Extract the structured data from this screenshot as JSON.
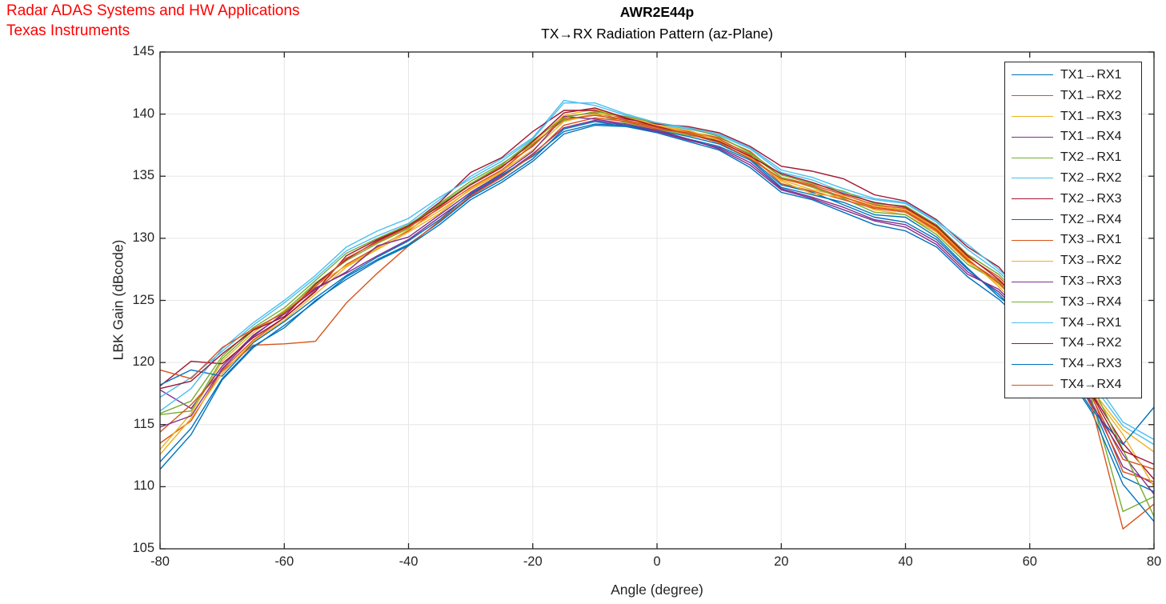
{
  "annotation": {
    "line1": "Radar ADAS Systems and HW Applications",
    "line2": "Texas Instruments",
    "color": "#ff0000"
  },
  "axis": {
    "axis_color": "#262626",
    "grid_color": "#e6e6e6",
    "background": "#ffffff"
  },
  "chart_data": {
    "type": "line",
    "title": "AWR2E44p",
    "subtitle": "TX→RX Radiation Pattern (az-Plane)",
    "xlabel": "Angle (degree)",
    "ylabel": "LBK Gain (dBcode)",
    "xlim": [
      -80,
      80
    ],
    "ylim": [
      105,
      145
    ],
    "x_ticks": [
      -80,
      -60,
      -40,
      -20,
      0,
      20,
      40,
      60,
      80
    ],
    "y_ticks": [
      105,
      110,
      115,
      120,
      125,
      130,
      135,
      140,
      145
    ],
    "grid": true,
    "legend_position": "northeast",
    "palette": [
      "#0072BD",
      "#D95319",
      "#EDB120",
      "#7E2F8E",
      "#77AC30",
      "#4DBEEE",
      "#A2142F"
    ],
    "x": [
      -80,
      -75,
      -70,
      -65,
      -60,
      -55,
      -50,
      -45,
      -40,
      -35,
      -30,
      -25,
      -20,
      -15,
      -10,
      -5,
      0,
      5,
      10,
      15,
      20,
      25,
      30,
      35,
      40,
      45,
      50,
      55,
      60,
      65,
      70,
      75,
      80
    ],
    "series": [
      {
        "name": "TX1→RX1",
        "color": "#0072BD",
        "values": [
          111.4,
          114.2,
          118.6,
          121.2,
          123.0,
          124.9,
          126.9,
          128.3,
          129.5,
          131.3,
          133.3,
          134.7,
          136.4,
          138.8,
          139.4,
          139.0,
          138.6,
          138.0,
          137.4,
          136.3,
          134.1,
          133.5,
          132.9,
          131.9,
          131.7,
          130.1,
          127.6,
          125.3,
          123.4,
          120.4,
          116.6,
          110.8,
          109.6
        ]
      },
      {
        "name": "TX1→RX2",
        "color": "#D95319",
        "values": [
          113.5,
          115.3,
          119.4,
          121.8,
          123.6,
          125.8,
          127.9,
          129.3,
          130.6,
          132.5,
          134.4,
          135.8,
          137.4,
          139.8,
          140.1,
          139.5,
          139.0,
          138.6,
          138.1,
          137.0,
          134.9,
          134.3,
          133.5,
          132.7,
          132.4,
          130.9,
          128.5,
          126.9,
          124.5,
          121.3,
          117.2,
          112.2,
          111.4
        ]
      },
      {
        "name": "TX1→RX3",
        "color": "#EDB120",
        "values": [
          113.0,
          115.9,
          120.1,
          122.4,
          124.2,
          126.2,
          127.8,
          129.2,
          130.7,
          132.2,
          133.9,
          135.3,
          137.7,
          139.9,
          140.4,
          139.7,
          139.1,
          138.5,
          137.8,
          136.6,
          134.7,
          133.9,
          133.4,
          132.3,
          131.9,
          130.5,
          128.1,
          126.3,
          124.0,
          121.0,
          117.8,
          114.6,
          112.8
        ]
      },
      {
        "name": "TX1→RX4",
        "color": "#7E2F8E",
        "values": [
          117.8,
          116.3,
          119.7,
          122.2,
          123.9,
          126.0,
          127.2,
          128.6,
          129.9,
          131.7,
          133.5,
          135.0,
          136.8,
          138.9,
          139.5,
          139.1,
          138.6,
          137.9,
          137.3,
          136.1,
          134.0,
          133.3,
          132.5,
          131.5,
          131.1,
          129.7,
          127.3,
          125.7,
          123.2,
          120.2,
          116.8,
          111.6,
          110.2
        ]
      },
      {
        "name": "TX2→RX1",
        "color": "#77AC30",
        "values": [
          115.8,
          116.1,
          120.3,
          122.6,
          124.1,
          126.4,
          128.2,
          129.6,
          130.8,
          132.8,
          134.6,
          136.0,
          137.6,
          139.5,
          140.0,
          139.3,
          138.8,
          138.3,
          137.9,
          136.8,
          134.9,
          134.1,
          133.2,
          132.1,
          131.9,
          130.3,
          127.9,
          126.5,
          123.8,
          120.8,
          117.0,
          108.0,
          109.2
        ]
      },
      {
        "name": "TX2→RX2",
        "color": "#4DBEEE",
        "values": [
          117.2,
          118.8,
          120.9,
          123.0,
          124.8,
          126.8,
          129.0,
          130.2,
          131.2,
          133.1,
          135.0,
          136.4,
          138.1,
          141.1,
          140.7,
          139.9,
          139.2,
          138.8,
          138.3,
          137.2,
          135.3,
          134.7,
          133.7,
          133.1,
          132.8,
          131.3,
          129.1,
          127.3,
          125.0,
          122.0,
          118.3,
          114.9,
          113.4
        ]
      },
      {
        "name": "TX2→RX3",
        "color": "#A2142F",
        "values": [
          118.1,
          120.1,
          119.9,
          122.0,
          123.6,
          125.7,
          128.6,
          129.9,
          131.0,
          132.9,
          135.3,
          136.5,
          138.6,
          140.3,
          140.3,
          139.6,
          139.2,
          139.0,
          138.5,
          137.4,
          135.8,
          135.4,
          134.8,
          133.5,
          133.0,
          131.5,
          129.3,
          127.7,
          124.8,
          121.8,
          117.5,
          113.5,
          110.6
        ]
      },
      {
        "name": "TX2→RX4",
        "color": "#0072BD",
        "values": [
          118.2,
          119.4,
          118.9,
          121.6,
          123.3,
          125.2,
          127.0,
          128.5,
          129.8,
          131.5,
          133.6,
          135.1,
          136.6,
          138.6,
          139.2,
          139.1,
          138.7,
          138.2,
          137.6,
          136.4,
          134.3,
          133.7,
          132.7,
          131.7,
          131.3,
          129.9,
          127.5,
          125.5,
          123.0,
          120.0,
          116.2,
          113.4,
          116.4
        ]
      },
      {
        "name": "TX3→RX1",
        "color": "#D95319",
        "values": [
          114.4,
          116.6,
          119.3,
          121.4,
          121.5,
          121.7,
          124.8,
          127.2,
          129.4,
          131.4,
          133.4,
          134.9,
          136.7,
          139.1,
          139.7,
          139.4,
          138.8,
          138.5,
          138.0,
          136.7,
          134.4,
          133.8,
          133.1,
          132.4,
          132.1,
          130.6,
          128.2,
          126.6,
          124.2,
          121.1,
          117.3,
          111.2,
          110.4
        ]
      },
      {
        "name": "TX3→RX2",
        "color": "#EDB120",
        "values": [
          112.6,
          115.5,
          119.1,
          121.7,
          123.4,
          125.5,
          127.7,
          129.1,
          130.5,
          132.0,
          134.0,
          135.4,
          137.1,
          139.4,
          140.0,
          139.8,
          139.1,
          138.7,
          137.9,
          136.5,
          134.6,
          133.6,
          133.3,
          132.6,
          132.3,
          130.8,
          128.4,
          126.1,
          123.6,
          120.6,
          117.6,
          114.2,
          110.0
        ]
      },
      {
        "name": "TX3→RX3",
        "color": "#7E2F8E",
        "values": [
          114.8,
          115.7,
          119.5,
          122.1,
          124.0,
          125.9,
          127.3,
          129.4,
          130.1,
          131.9,
          133.7,
          135.2,
          137.0,
          139.8,
          139.6,
          139.2,
          138.7,
          138.0,
          137.2,
          135.9,
          133.9,
          133.2,
          132.3,
          131.4,
          130.9,
          129.5,
          127.1,
          125.9,
          123.4,
          120.4,
          116.6,
          112.6,
          109.4
        ]
      },
      {
        "name": "TX3→RX4",
        "color": "#77AC30",
        "values": [
          115.9,
          116.9,
          120.5,
          122.8,
          124.4,
          126.6,
          128.8,
          130.0,
          131.1,
          132.7,
          134.4,
          135.9,
          137.9,
          139.7,
          140.2,
          139.8,
          139.3,
          138.9,
          138.2,
          136.9,
          135.1,
          134.4,
          133.8,
          132.8,
          132.6,
          131.1,
          128.7,
          127.1,
          124.6,
          121.6,
          118.2,
          113.0,
          107.6
        ]
      },
      {
        "name": "TX4→RX1",
        "color": "#4DBEEE",
        "values": [
          116.1,
          117.9,
          121.1,
          123.2,
          125.0,
          127.0,
          129.3,
          130.6,
          131.6,
          133.3,
          134.8,
          136.2,
          138.0,
          140.9,
          140.9,
          140.0,
          139.3,
          138.9,
          138.4,
          137.3,
          135.5,
          134.9,
          134.0,
          133.2,
          132.9,
          131.4,
          129.5,
          127.5,
          125.2,
          122.2,
          118.8,
          115.2,
          113.8
        ]
      },
      {
        "name": "TX4→RX2",
        "color": "#A2142F",
        "values": [
          117.9,
          118.5,
          120.7,
          122.6,
          123.7,
          126.3,
          128.3,
          129.8,
          131.0,
          132.6,
          134.3,
          135.7,
          137.8,
          140.1,
          140.5,
          139.7,
          139.0,
          138.4,
          137.8,
          136.6,
          135.2,
          134.5,
          133.6,
          132.9,
          132.5,
          131.0,
          128.6,
          126.7,
          124.3,
          121.4,
          117.4,
          112.9,
          111.8
        ]
      },
      {
        "name": "TX4→RX3",
        "color": "#0072BD",
        "values": [
          112.0,
          114.7,
          118.7,
          121.3,
          122.8,
          125.0,
          126.7,
          128.2,
          129.4,
          131.1,
          133.1,
          134.5,
          136.2,
          138.4,
          139.1,
          139.0,
          138.5,
          137.8,
          137.1,
          135.7,
          133.7,
          133.1,
          132.1,
          131.1,
          130.6,
          129.3,
          126.9,
          125.1,
          122.8,
          119.8,
          116.0,
          110.2,
          107.2
        ]
      },
      {
        "name": "TX4→RX4",
        "color": "#D95319",
        "values": [
          119.4,
          118.7,
          121.2,
          122.7,
          124.0,
          126.1,
          128.4,
          129.7,
          130.9,
          132.4,
          134.1,
          135.5,
          137.5,
          139.6,
          139.9,
          139.5,
          138.9,
          138.4,
          137.7,
          136.4,
          134.8,
          134.2,
          133.3,
          132.5,
          132.2,
          130.7,
          128.3,
          126.4,
          123.9,
          120.9,
          116.4,
          106.6,
          108.6
        ]
      }
    ]
  }
}
